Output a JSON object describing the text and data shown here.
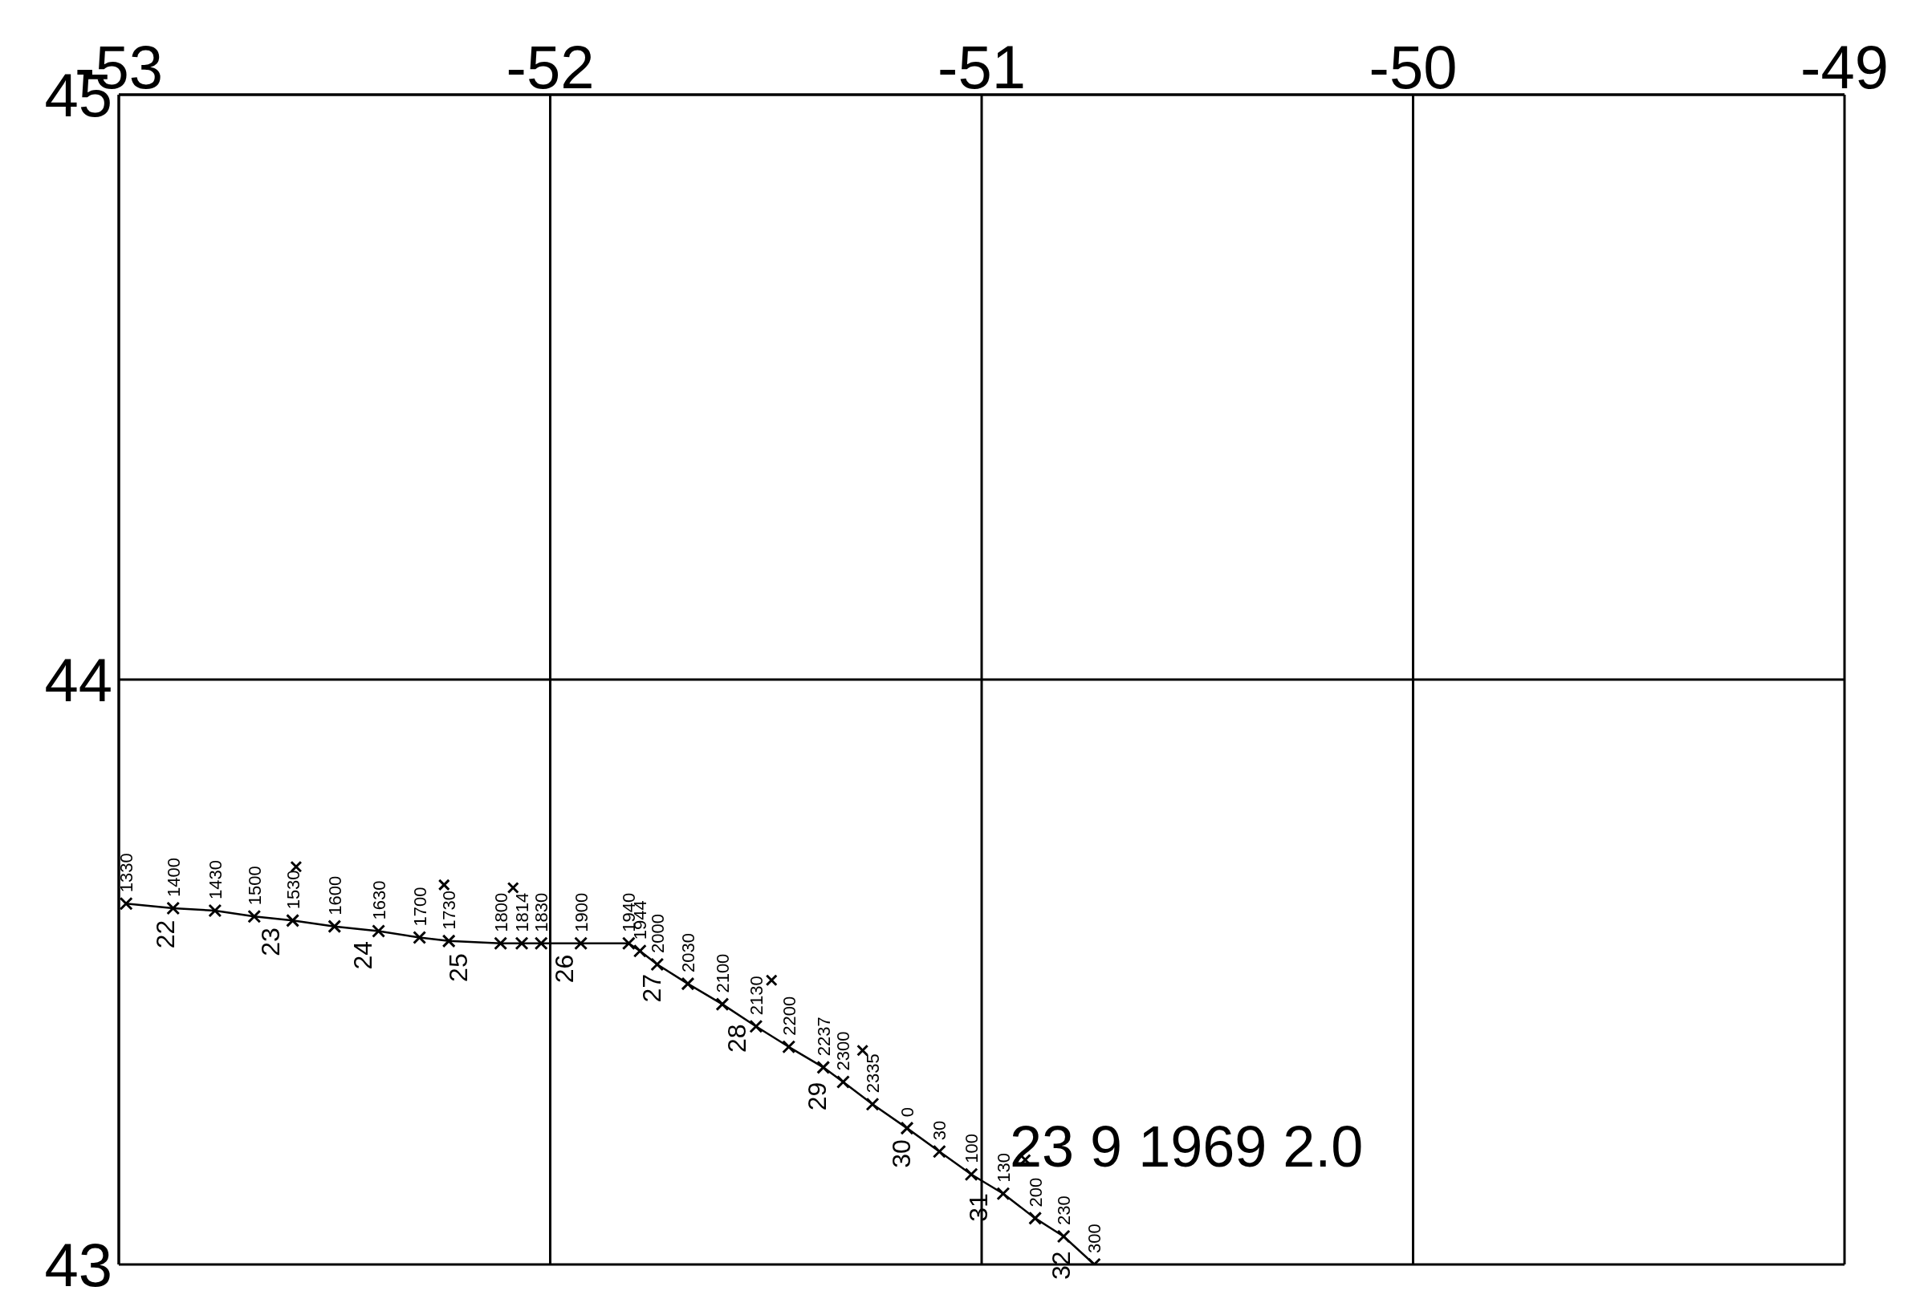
{
  "chart_data": {
    "type": "line",
    "xlim": [
      -53,
      -49
    ],
    "xticks": [
      -53,
      -52,
      -51,
      -50,
      -49
    ],
    "ylim": [
      43,
      45
    ],
    "yticks": [
      43,
      44,
      45
    ],
    "grid": true,
    "marker": "cross",
    "series": [
      {
        "color": "#000000",
        "x": [
          -52.983,
          -52.874,
          -52.777,
          -52.686,
          -52.597,
          -52.5,
          -52.398,
          -52.303,
          -52.235,
          -52.115,
          -52.066,
          -52.021,
          -51.929,
          -51.818,
          -51.792,
          -51.752,
          -51.681,
          -51.601,
          -51.523,
          -51.447,
          -51.367,
          -51.321,
          -51.253,
          -51.173,
          -51.098,
          -51.024,
          -50.95,
          -50.876,
          -50.81,
          -50.739
        ],
        "values": [
          43.617,
          43.609,
          43.605,
          43.595,
          43.588,
          43.578,
          43.57,
          43.559,
          43.553,
          43.549,
          43.549,
          43.549,
          43.549,
          43.549,
          43.536,
          43.513,
          43.48,
          43.445,
          43.407,
          43.372,
          43.337,
          43.312,
          43.274,
          43.233,
          43.193,
          43.154,
          43.121,
          43.079,
          43.048,
          43.0
        ]
      },
      {
        "type": "scatter",
        "color": "#000000",
        "x": [
          -52.589,
          -52.246,
          -52.086,
          -51.487,
          -51.276,
          -50.899
        ],
        "values": [
          43.68,
          43.649,
          43.644,
          43.486,
          43.366,
          43.179
        ]
      }
    ],
    "annotations": [
      {
        "text": "1330",
        "x": -52.983,
        "y": 43.617
      },
      {
        "text": "1400",
        "x": -52.874,
        "y": 43.609
      },
      {
        "text": "1430",
        "x": -52.777,
        "y": 43.605
      },
      {
        "text": "1500",
        "x": -52.686,
        "y": 43.595
      },
      {
        "text": "1530",
        "x": -52.597,
        "y": 43.588
      },
      {
        "text": "1600",
        "x": -52.5,
        "y": 43.578
      },
      {
        "text": "1630",
        "x": -52.398,
        "y": 43.57
      },
      {
        "text": "1700",
        "x": -52.303,
        "y": 43.559
      },
      {
        "text": "1730",
        "x": -52.235,
        "y": 43.553
      },
      {
        "text": "1800",
        "x": -52.115,
        "y": 43.549
      },
      {
        "text": "1814",
        "x": -52.066,
        "y": 43.549
      },
      {
        "text": "1830",
        "x": -52.021,
        "y": 43.549
      },
      {
        "text": "1900",
        "x": -51.929,
        "y": 43.549
      },
      {
        "text": "1940",
        "x": -51.818,
        "y": 43.549
      },
      {
        "text": "1944",
        "x": -51.792,
        "y": 43.536
      },
      {
        "text": "2000",
        "x": -51.752,
        "y": 43.513
      },
      {
        "text": "2030",
        "x": -51.681,
        "y": 43.48
      },
      {
        "text": "2100",
        "x": -51.601,
        "y": 43.445
      },
      {
        "text": "2130",
        "x": -51.523,
        "y": 43.407
      },
      {
        "text": "2200",
        "x": -51.447,
        "y": 43.372
      },
      {
        "text": "2237",
        "x": -51.367,
        "y": 43.337
      },
      {
        "text": "2300",
        "x": -51.321,
        "y": 43.312
      },
      {
        "text": "2335",
        "x": -51.253,
        "y": 43.274
      },
      {
        "text": "0",
        "x": -51.173,
        "y": 43.233
      },
      {
        "text": "30",
        "x": -51.098,
        "y": 43.193
      },
      {
        "text": "100",
        "x": -51.024,
        "y": 43.154
      },
      {
        "text": "130",
        "x": -50.95,
        "y": 43.121
      },
      {
        "text": "200",
        "x": -50.876,
        "y": 43.079
      },
      {
        "text": "230",
        "x": -50.81,
        "y": 43.048
      },
      {
        "text": "300",
        "x": -50.739,
        "y": 43.0
      },
      {
        "text": "22",
        "x": -52.883,
        "y": 43.608
      },
      {
        "text": "23",
        "x": -52.64,
        "y": 43.595
      },
      {
        "text": "24",
        "x": -52.426,
        "y": 43.572
      },
      {
        "text": "25",
        "x": -52.203,
        "y": 43.551
      },
      {
        "text": "26",
        "x": -51.958,
        "y": 43.549
      },
      {
        "text": "27",
        "x": -51.755,
        "y": 43.516
      },
      {
        "text": "28",
        "x": -51.558,
        "y": 43.43
      },
      {
        "text": "29",
        "x": -51.373,
        "y": 43.331
      },
      {
        "text": "30",
        "x": -51.176,
        "y": 43.233
      },
      {
        "text": "31",
        "x": -50.999,
        "y": 43.141
      },
      {
        "text": "32",
        "x": -50.807,
        "y": 43.042
      },
      "23 9 1969 2.0"
    ]
  }
}
